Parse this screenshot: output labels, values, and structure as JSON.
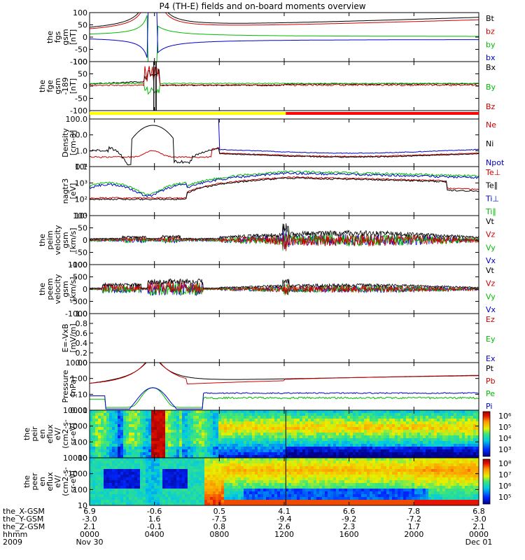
{
  "title": "P4 (TH-E) fields and on-board moments overview",
  "chart_data": {
    "type": "line",
    "title": "P4 (TH-E) fields and on-board moments overview",
    "panels": [
      {
        "id": "fgs",
        "ylabel": [
          "the",
          "fgs",
          "gsm",
          "[nT]"
        ],
        "yticks": [
          "100",
          "50",
          "0",
          "-50",
          "-100"
        ],
        "ylim": [
          -100,
          100
        ],
        "log": false,
        "legend": [
          {
            "name": "Bt",
            "color": "#000000"
          },
          {
            "name": "bz",
            "color": "#cc0000"
          },
          {
            "name": "by",
            "color": "#00bb00"
          },
          {
            "name": "bx",
            "color": "#0000cc"
          }
        ]
      },
      {
        "id": "fge",
        "ylabel": [
          "the",
          "fge",
          "gsm",
          "-189",
          "[nT]"
        ],
        "yticks": [
          "100",
          "50",
          "0",
          "-50",
          "-100"
        ],
        "ylim": [
          -120,
          100
        ],
        "log": false,
        "legend": [
          {
            "name": "Bx",
            "color": "#000000"
          },
          {
            "name": "By",
            "color": "#00bb00"
          },
          {
            "name": "Bz",
            "color": "#cc0000"
          }
        ]
      },
      {
        "id": "density",
        "ylabel": [
          "Density",
          "[cm-3]"
        ],
        "yticks": [
          "100.0",
          "10.0",
          "1.0",
          "0.1"
        ],
        "ylim": [
          0.1,
          100
        ],
        "log": true,
        "legend": [
          {
            "name": "Ne",
            "color": "#cc0000"
          },
          {
            "name": "Ni",
            "color": "#000000"
          },
          {
            "name": "Npot",
            "color": "#0000cc"
          }
        ]
      },
      {
        "id": "temperature",
        "ylabel": [
          "nagtr3",
          "[eV]"
        ],
        "yticks": [
          "10⁴",
          "10³",
          "10²",
          "10¹"
        ],
        "ylim": [
          10,
          10000
        ],
        "log": true,
        "legend": [
          {
            "name": "Te⊥",
            "color": "#cc0000"
          },
          {
            "name": "Te∥",
            "color": "#000000"
          },
          {
            "name": "Ti⊥",
            "color": "#0000cc"
          },
          {
            "name": "Ti∥",
            "color": "#00bb00"
          }
        ]
      },
      {
        "id": "peim",
        "ylabel": [
          "the",
          "peim",
          "velocity",
          "gsm",
          "[km/s]"
        ],
        "yticks": [
          "100",
          "50",
          "0",
          "-50",
          "-100"
        ],
        "ylim": [
          -100,
          100
        ],
        "log": false,
        "legend": [
          {
            "name": "Vt",
            "color": "#000000"
          },
          {
            "name": "Vz",
            "color": "#cc0000"
          },
          {
            "name": "Vy",
            "color": "#00bb00"
          },
          {
            "name": "Vx",
            "color": "#0000cc"
          }
        ]
      },
      {
        "id": "peem",
        "ylabel": [
          "the",
          "peem",
          "velocity",
          "gsm",
          "[km/s]"
        ],
        "yticks": [
          "1000",
          "500",
          "0",
          "-500",
          "-1000"
        ],
        "ylim": [
          -1000,
          1000
        ],
        "log": false,
        "legend": [
          {
            "name": "Vt",
            "color": "#000000"
          },
          {
            "name": "Vz",
            "color": "#cc0000"
          },
          {
            "name": "Vy",
            "color": "#00bb00"
          },
          {
            "name": "Vx",
            "color": "#0000cc"
          }
        ]
      },
      {
        "id": "efield",
        "ylabel": [
          "E=-VxB",
          "[mV/m]"
        ],
        "yticks": [
          "1.0",
          "0.8",
          "0.6",
          "0.4",
          "0.2",
          "0.0"
        ],
        "ylim": [
          0,
          1
        ],
        "log": false,
        "legend": [
          {
            "name": "Ez",
            "color": "#cc0000"
          },
          {
            "name": "Ey",
            "color": "#00bb00"
          },
          {
            "name": "Ex",
            "color": "#0000cc"
          }
        ]
      },
      {
        "id": "pressure",
        "ylabel": [
          "Pressure",
          "[nPa]"
        ],
        "yticks": [
          "10.00",
          "1.00",
          "0.10",
          "0.01"
        ],
        "ylim": [
          0.01,
          10
        ],
        "log": true,
        "legend": [
          {
            "name": "Pt",
            "color": "#000000"
          },
          {
            "name": "Pb",
            "color": "#cc0000"
          },
          {
            "name": "Pe",
            "color": "#00bb00"
          },
          {
            "name": "Pi",
            "color": "#0000cc"
          }
        ]
      },
      {
        "id": "peir",
        "ylabel": [
          "the",
          "peir",
          "en",
          "eflux",
          "eV/",
          "(cm2-s-",
          "sr-eV)"
        ],
        "yticks": [
          "10000",
          "1000",
          "100",
          "10"
        ],
        "ylim": [
          10,
          20000
        ],
        "log": true,
        "colorbar": [
          "10⁶",
          "10⁵",
          "10⁴",
          "10³"
        ]
      },
      {
        "id": "peer",
        "ylabel": [
          "the",
          "peer",
          "en",
          "eflux",
          "eV/",
          "(cm2-s-",
          "sr-eV)"
        ],
        "yticks": [
          "10000",
          "1000",
          "100",
          "10"
        ],
        "ylim": [
          10,
          20000
        ],
        "log": true,
        "colorbar": [
          "10⁸",
          "10⁷",
          "10⁶",
          "10⁵"
        ]
      }
    ],
    "x_axis": {
      "row_labels": [
        "the_X-GSM",
        "the_Y-GSM",
        "the_Z-GSM",
        "hhmm",
        "2009"
      ],
      "ticks": [
        {
          "time": "0000",
          "x": "6.9",
          "y": "-3.0",
          "z": "2.1",
          "date": "Nov 30"
        },
        {
          "time": "0400",
          "x": "-0.6",
          "y": "1.6",
          "z": "-0.1",
          "date": ""
        },
        {
          "time": "0800",
          "x": "0.5",
          "y": "-7.5",
          "z": "0.8",
          "date": ""
        },
        {
          "time": "1200",
          "x": "4.1",
          "y": "-9.4",
          "z": "2.6",
          "date": ""
        },
        {
          "time": "1600",
          "x": "6.6",
          "y": "-9.2",
          "z": "2.3",
          "date": ""
        },
        {
          "time": "2000",
          "x": "7.8",
          "y": "-7.2",
          "z": "1.7",
          "date": ""
        },
        {
          "time": "0000",
          "x": "6.8",
          "y": "-3.0",
          "z": "2.1",
          "date": "Dec 01"
        }
      ]
    },
    "mode_bar": {
      "yellow_until_hours": 12.1,
      "red_after_hours": 12.1
    },
    "t_range_hours": [
      0,
      24
    ]
  }
}
